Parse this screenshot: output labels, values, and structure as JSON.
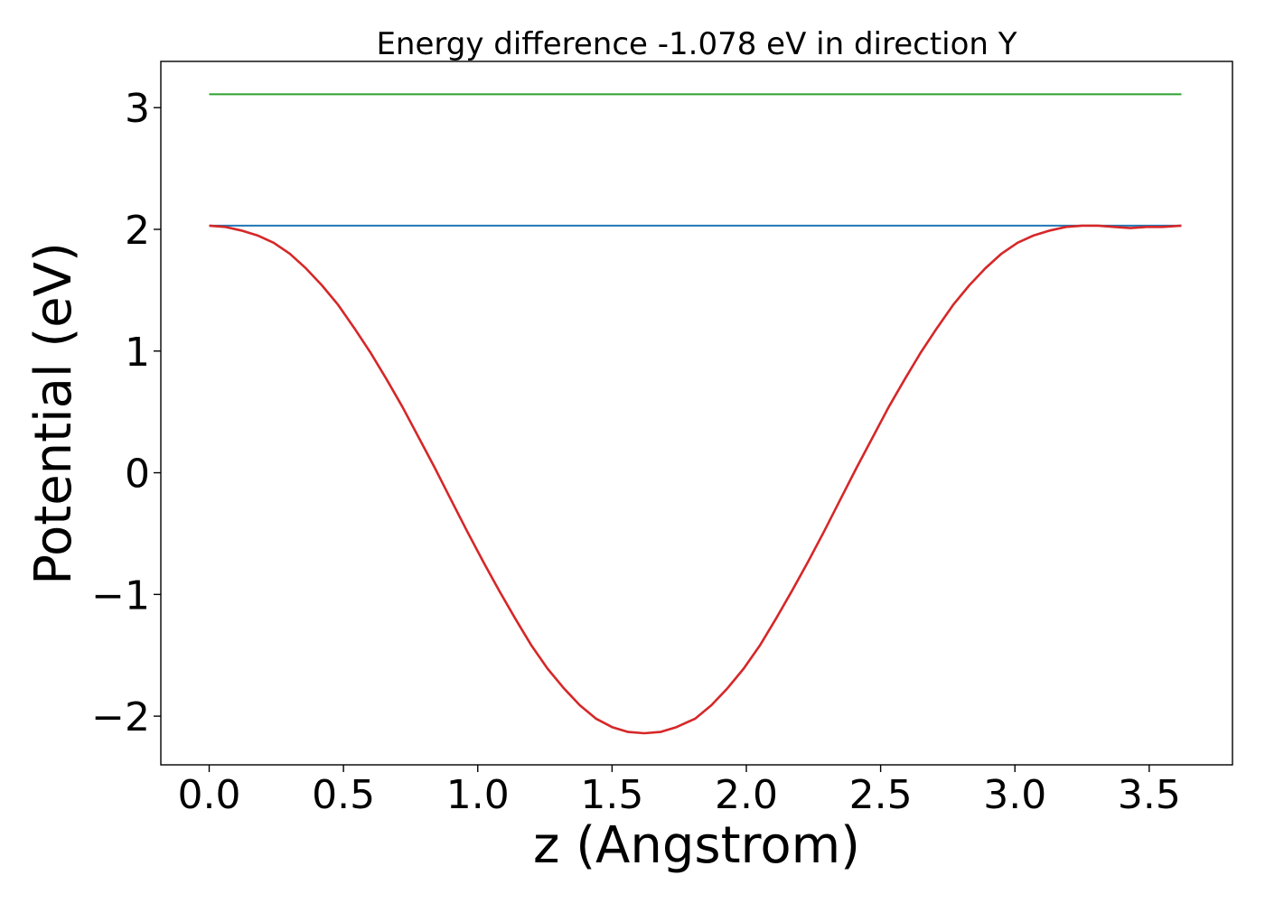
{
  "chart_data": {
    "type": "line",
    "title": "Energy difference -1.078 eV in direction Y",
    "xlabel": "z (Angstrom)",
    "ylabel": "Potential (eV)",
    "xlim": [
      -0.18,
      3.81
    ],
    "ylim": [
      -2.4,
      3.38
    ],
    "xticks": [
      0.0,
      0.5,
      1.0,
      1.5,
      2.0,
      2.5,
      3.0,
      3.5
    ],
    "xtick_labels": [
      "0.0",
      "0.5",
      "1.0",
      "1.5",
      "2.0",
      "2.5",
      "3.0",
      "3.5"
    ],
    "yticks": [
      -2,
      -1,
      0,
      1,
      2,
      3
    ],
    "ytick_labels": [
      "−2",
      "−1",
      "0",
      "1",
      "2",
      "3"
    ],
    "grid": false,
    "series": [
      {
        "color": "#2ca02c",
        "x": [
          0.0,
          3.62
        ],
        "y": [
          3.11,
          3.11
        ]
      },
      {
        "color": "#1f77b4",
        "x": [
          0.0,
          3.62
        ],
        "y": [
          2.03,
          2.03
        ]
      },
      {
        "color": "#d62728",
        "x": [
          0.0,
          0.06,
          0.12,
          0.18,
          0.24,
          0.3,
          0.36,
          0.42,
          0.48,
          0.54,
          0.6,
          0.66,
          0.72,
          0.78,
          0.84,
          0.9,
          0.96,
          1.02,
          1.08,
          1.14,
          1.2,
          1.26,
          1.32,
          1.38,
          1.44,
          1.5,
          1.56,
          1.62,
          1.68,
          1.74,
          1.81,
          1.87,
          1.93,
          1.99,
          2.05,
          2.11,
          2.17,
          2.23,
          2.29,
          2.35,
          2.41,
          2.47,
          2.53,
          2.59,
          2.65,
          2.71,
          2.77,
          2.83,
          2.89,
          2.95,
          3.01,
          3.07,
          3.13,
          3.19,
          3.25,
          3.31,
          3.37,
          3.43,
          3.49,
          3.55,
          3.62
        ],
        "y": [
          2.03,
          2.02,
          1.99,
          1.95,
          1.89,
          1.8,
          1.68,
          1.54,
          1.38,
          1.19,
          0.99,
          0.77,
          0.54,
          0.29,
          0.04,
          -0.22,
          -0.48,
          -0.73,
          -0.97,
          -1.2,
          -1.42,
          -1.61,
          -1.77,
          -1.91,
          -2.02,
          -2.09,
          -2.13,
          -2.14,
          -2.13,
          -2.09,
          -2.02,
          -1.91,
          -1.77,
          -1.61,
          -1.42,
          -1.2,
          -0.97,
          -0.73,
          -0.48,
          -0.22,
          0.04,
          0.29,
          0.54,
          0.77,
          0.99,
          1.19,
          1.38,
          1.54,
          1.68,
          1.8,
          1.89,
          1.95,
          1.99,
          2.02,
          2.03,
          2.03,
          2.02,
          2.01,
          2.02,
          2.02,
          2.03
        ]
      }
    ]
  }
}
